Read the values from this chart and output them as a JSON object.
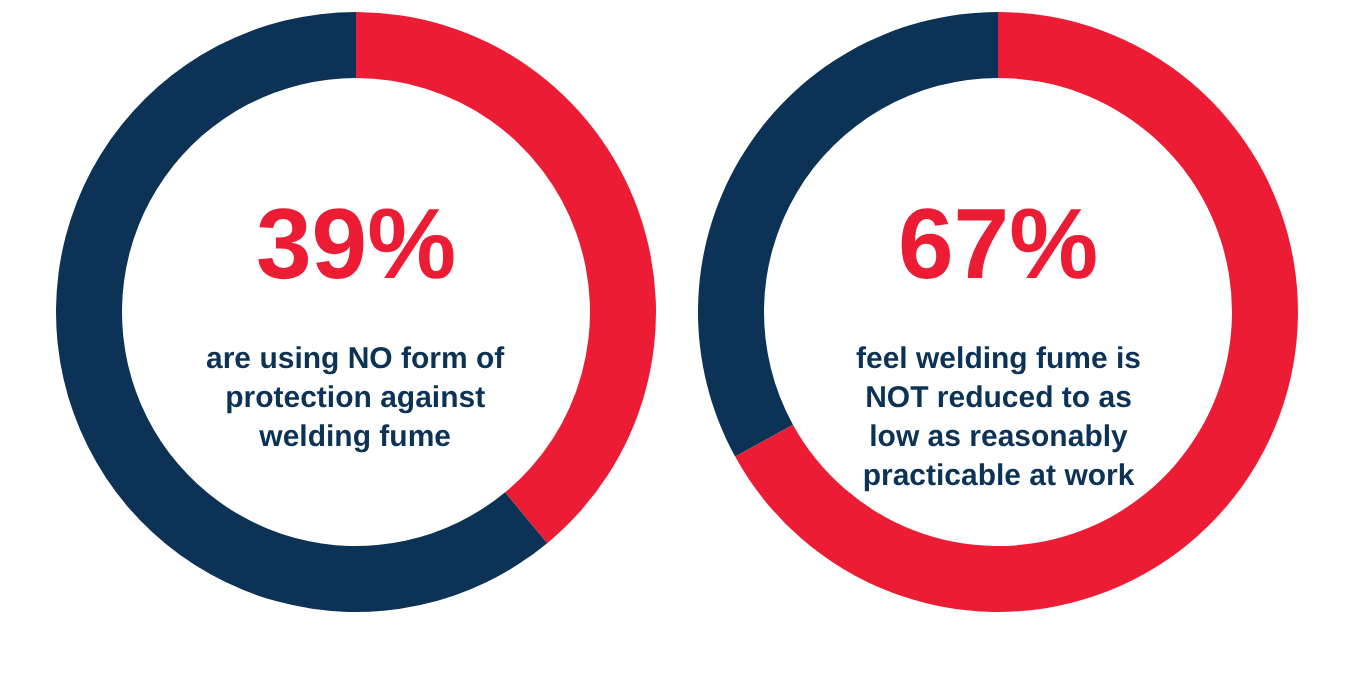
{
  "chart_data": [
    {
      "type": "donut",
      "title": "39%",
      "categories": [
        null,
        null
      ],
      "values": [
        39,
        61
      ],
      "colors": [
        "#ec1c34",
        "#0c3356"
      ],
      "annotations": [
        "are using NO form of protection against welding fume"
      ],
      "legend": false
    },
    {
      "type": "donut",
      "title": "67%",
      "categories": [
        null,
        null
      ],
      "values": [
        67,
        33
      ],
      "colors": [
        "#ec1c34",
        "#0c3356"
      ],
      "annotations": [
        "feel welding fume is NOT reduced to as low as reasonably practicable at work"
      ],
      "legend": false
    }
  ]
}
